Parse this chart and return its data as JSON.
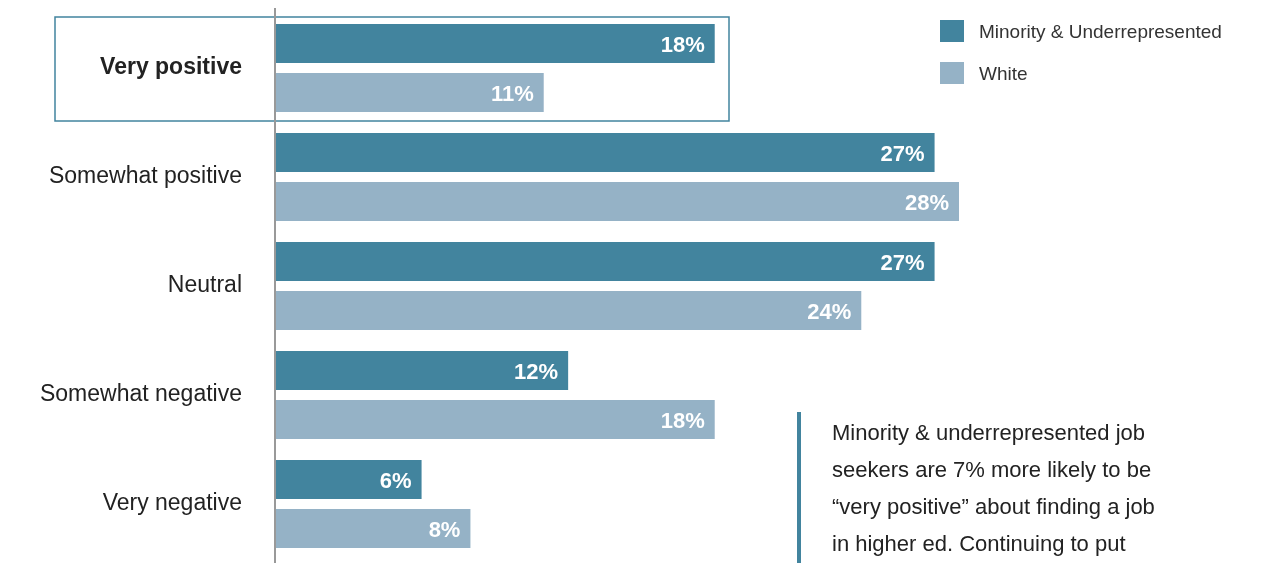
{
  "chart_data": {
    "type": "bar",
    "orientation": "horizontal",
    "categories": [
      "Very positive",
      "Somewhat positive",
      "Neutral",
      "Somewhat negative",
      "Very negative"
    ],
    "series": [
      {
        "name": "Minority & Underrepresented",
        "color": "#42849e",
        "values": [
          18,
          27,
          27,
          12,
          6
        ],
        "value_labels": [
          "18%",
          "27%",
          "27%",
          "12%",
          "6%"
        ]
      },
      {
        "name": "White",
        "color": "#95b2c6",
        "values": [
          11,
          28,
          24,
          18,
          8
        ],
        "value_labels": [
          "11%",
          "28%",
          "24%",
          "18%",
          "8%"
        ]
      }
    ],
    "legend": "top right",
    "annotations": [
      "Minority & underrepresented job seekers are 7% more likely to be “very positive” about finding a job in higher ed. Continuing to put"
    ]
  }
}
